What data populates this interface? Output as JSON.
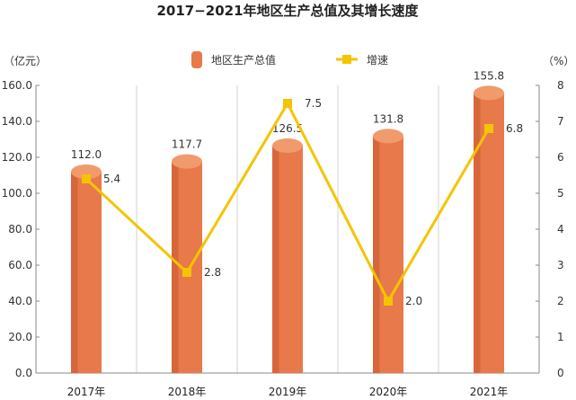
{
  "chart_data": {
    "type": "bar+line",
    "title": "2017−2021年地区生产总值及其增长速度",
    "categories": [
      "2017年",
      "2018年",
      "2019年",
      "2020年",
      "2021年"
    ],
    "series": [
      {
        "name": "地区生产总值",
        "type": "bar",
        "axis": "left",
        "values": [
          112.0,
          117.7,
          126.5,
          131.8,
          155.8
        ],
        "labels": [
          "112.0",
          "117.7",
          "126.5",
          "131.8",
          "155.8"
        ]
      },
      {
        "name": "增速",
        "type": "line",
        "axis": "right",
        "values": [
          5.4,
          2.8,
          7.5,
          2.0,
          6.8
        ],
        "labels": [
          "5.4",
          "2.8",
          "7.5",
          "2.0",
          "6.8"
        ]
      }
    ],
    "y_left": {
      "unit": "（亿元）",
      "min": 0,
      "max": 160,
      "ticks": [
        "0.0",
        "20.0",
        "40.0",
        "60.0",
        "80.0",
        "100.0",
        "120.0",
        "140.0",
        "160.0"
      ]
    },
    "y_right": {
      "unit": "（%）",
      "min": 0,
      "max": 8,
      "ticks": [
        "0",
        "1",
        "2",
        "3",
        "4",
        "5",
        "6",
        "7",
        "8"
      ]
    },
    "grid": "vertical",
    "legend": "top-center"
  },
  "colors": {
    "bar": "#e8794a",
    "bar_dark": "#c85a2e",
    "bar_top": "#f19a6c",
    "line": "#f5c400",
    "grid": "#d3d3d3",
    "axis": "#888888"
  }
}
